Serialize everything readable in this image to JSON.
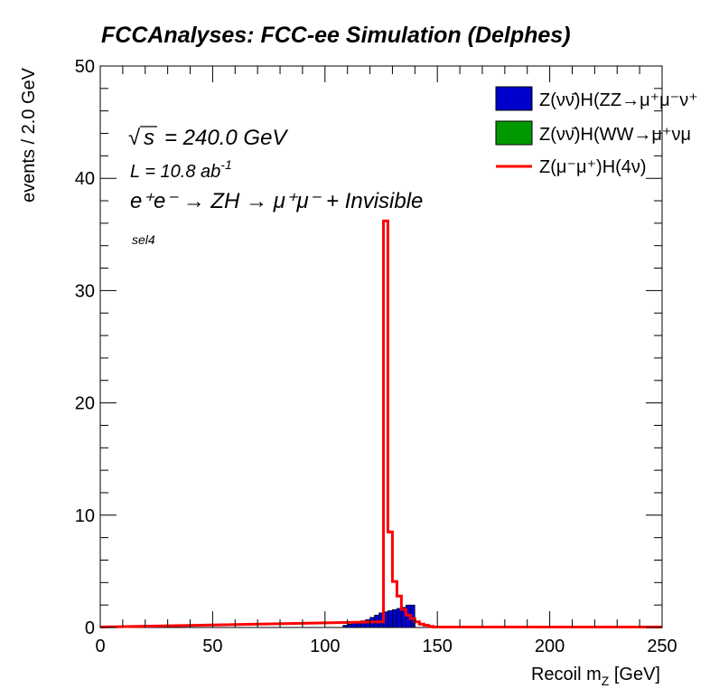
{
  "chart_data": {
    "type": "histogram",
    "title": "FCCAnalyses: FCC-ee Simulation (Delphes)",
    "xlabel": "Recoil m_Z [GeV]",
    "xlabel_main": "Recoil m",
    "xlabel_sub": "Z",
    "xlabel_unit": " [GeV]",
    "ylabel": "events / 2.0 GeV",
    "xlim": [
      0,
      250
    ],
    "ylim": [
      0,
      50
    ],
    "x_ticks": [
      0,
      50,
      100,
      150,
      200,
      250
    ],
    "y_ticks": [
      0,
      10,
      20,
      30,
      40,
      50
    ],
    "bin_width": 2.0,
    "annotations": {
      "sqrt_s": "= 240.0 GeV",
      "lumi_prefix": "L = 10.8 ab",
      "lumi_exp": "-1",
      "process": "e⁺e⁻ → ZH → μ⁺μ⁻ + Invisible",
      "selection": "sel4"
    },
    "series": [
      {
        "name": "Z(νν̄)H(ZZ→μ⁺μ⁻ν⁺",
        "style": "filled",
        "color": "#0000cc",
        "bins": [
          [
            108,
            110,
            0.2
          ],
          [
            110,
            112,
            0.3
          ],
          [
            112,
            114,
            0.4
          ],
          [
            114,
            116,
            0.5
          ],
          [
            116,
            118,
            0.6
          ],
          [
            118,
            120,
            0.7
          ],
          [
            120,
            122,
            0.9
          ],
          [
            122,
            124,
            1.1
          ],
          [
            124,
            126,
            1.3
          ],
          [
            126,
            128,
            1.4
          ],
          [
            128,
            130,
            1.5
          ],
          [
            130,
            132,
            1.6
          ],
          [
            132,
            134,
            1.7
          ],
          [
            134,
            136,
            1.8
          ],
          [
            136,
            138,
            2.0
          ],
          [
            138,
            140,
            2.0
          ]
        ]
      },
      {
        "name": "Z(νν̄)H(WW→μ⁺νμ",
        "style": "filled",
        "color": "#009900",
        "bins": []
      },
      {
        "name": "Z(μ⁻μ⁺)H(4ν)",
        "style": "step",
        "color": "#ff0000",
        "bins": [
          [
            124,
            126,
            0.5
          ],
          [
            126,
            128,
            36.2
          ],
          [
            128,
            130,
            8.5
          ],
          [
            130,
            132,
            4.1
          ],
          [
            132,
            134,
            2.8
          ],
          [
            134,
            136,
            1.6
          ],
          [
            136,
            138,
            1.1
          ],
          [
            138,
            140,
            0.8
          ],
          [
            140,
            142,
            0.5
          ],
          [
            142,
            144,
            0.3
          ],
          [
            144,
            146,
            0.2
          ],
          [
            146,
            148,
            0.1
          ]
        ]
      }
    ],
    "legend": "top-right"
  }
}
